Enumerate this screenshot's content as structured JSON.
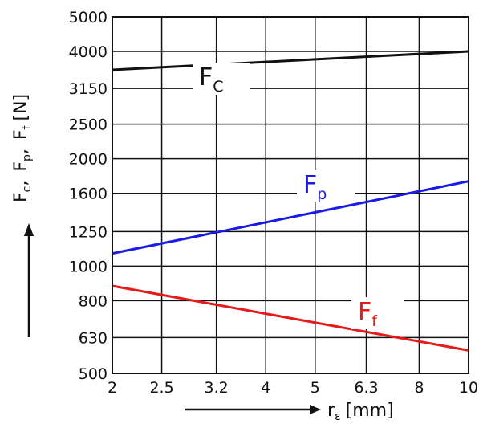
{
  "chart_data": {
    "type": "line",
    "x_scale": "log",
    "y_scale": "log",
    "x_ticks": [
      2,
      2.5,
      3.2,
      4,
      5,
      6.3,
      8,
      10
    ],
    "x_tick_labels": [
      "2",
      "2.5",
      "3.2",
      "4",
      "5",
      "6.3",
      "8",
      "10"
    ],
    "y_ticks": [
      500,
      630,
      800,
      1000,
      1250,
      1600,
      2000,
      2500,
      3150,
      4000,
      5000
    ],
    "y_tick_labels": [
      "500",
      "630",
      "800",
      "1000",
      "1250",
      "1600",
      "2000",
      "2500",
      "3150",
      "4000",
      "5000"
    ],
    "xlim": [
      2,
      10
    ],
    "ylim": [
      500,
      5000
    ],
    "grid": true,
    "xlabel": {
      "main": "r",
      "sub": "ε",
      "unit": "[mm]"
    },
    "ylabel": {
      "parts": [
        {
          "main": "F",
          "sub": "c"
        },
        {
          "main": "F",
          "sub": "p"
        },
        {
          "main": "F",
          "sub": "f"
        }
      ],
      "separator": ",",
      "unit": "[N]"
    },
    "series": [
      {
        "label_main": "F",
        "label_sub": "C",
        "color": "#111111",
        "x": [
          2,
          10
        ],
        "y": [
          3550,
          4000
        ]
      },
      {
        "label_main": "F",
        "label_sub": "p",
        "color": "#1a1ae6",
        "x": [
          2,
          10
        ],
        "y": [
          1085,
          1730
        ]
      },
      {
        "label_main": "F",
        "label_sub": "f",
        "color": "#e61a1a",
        "x": [
          2,
          10
        ],
        "y": [
          880,
          580
        ]
      }
    ]
  }
}
